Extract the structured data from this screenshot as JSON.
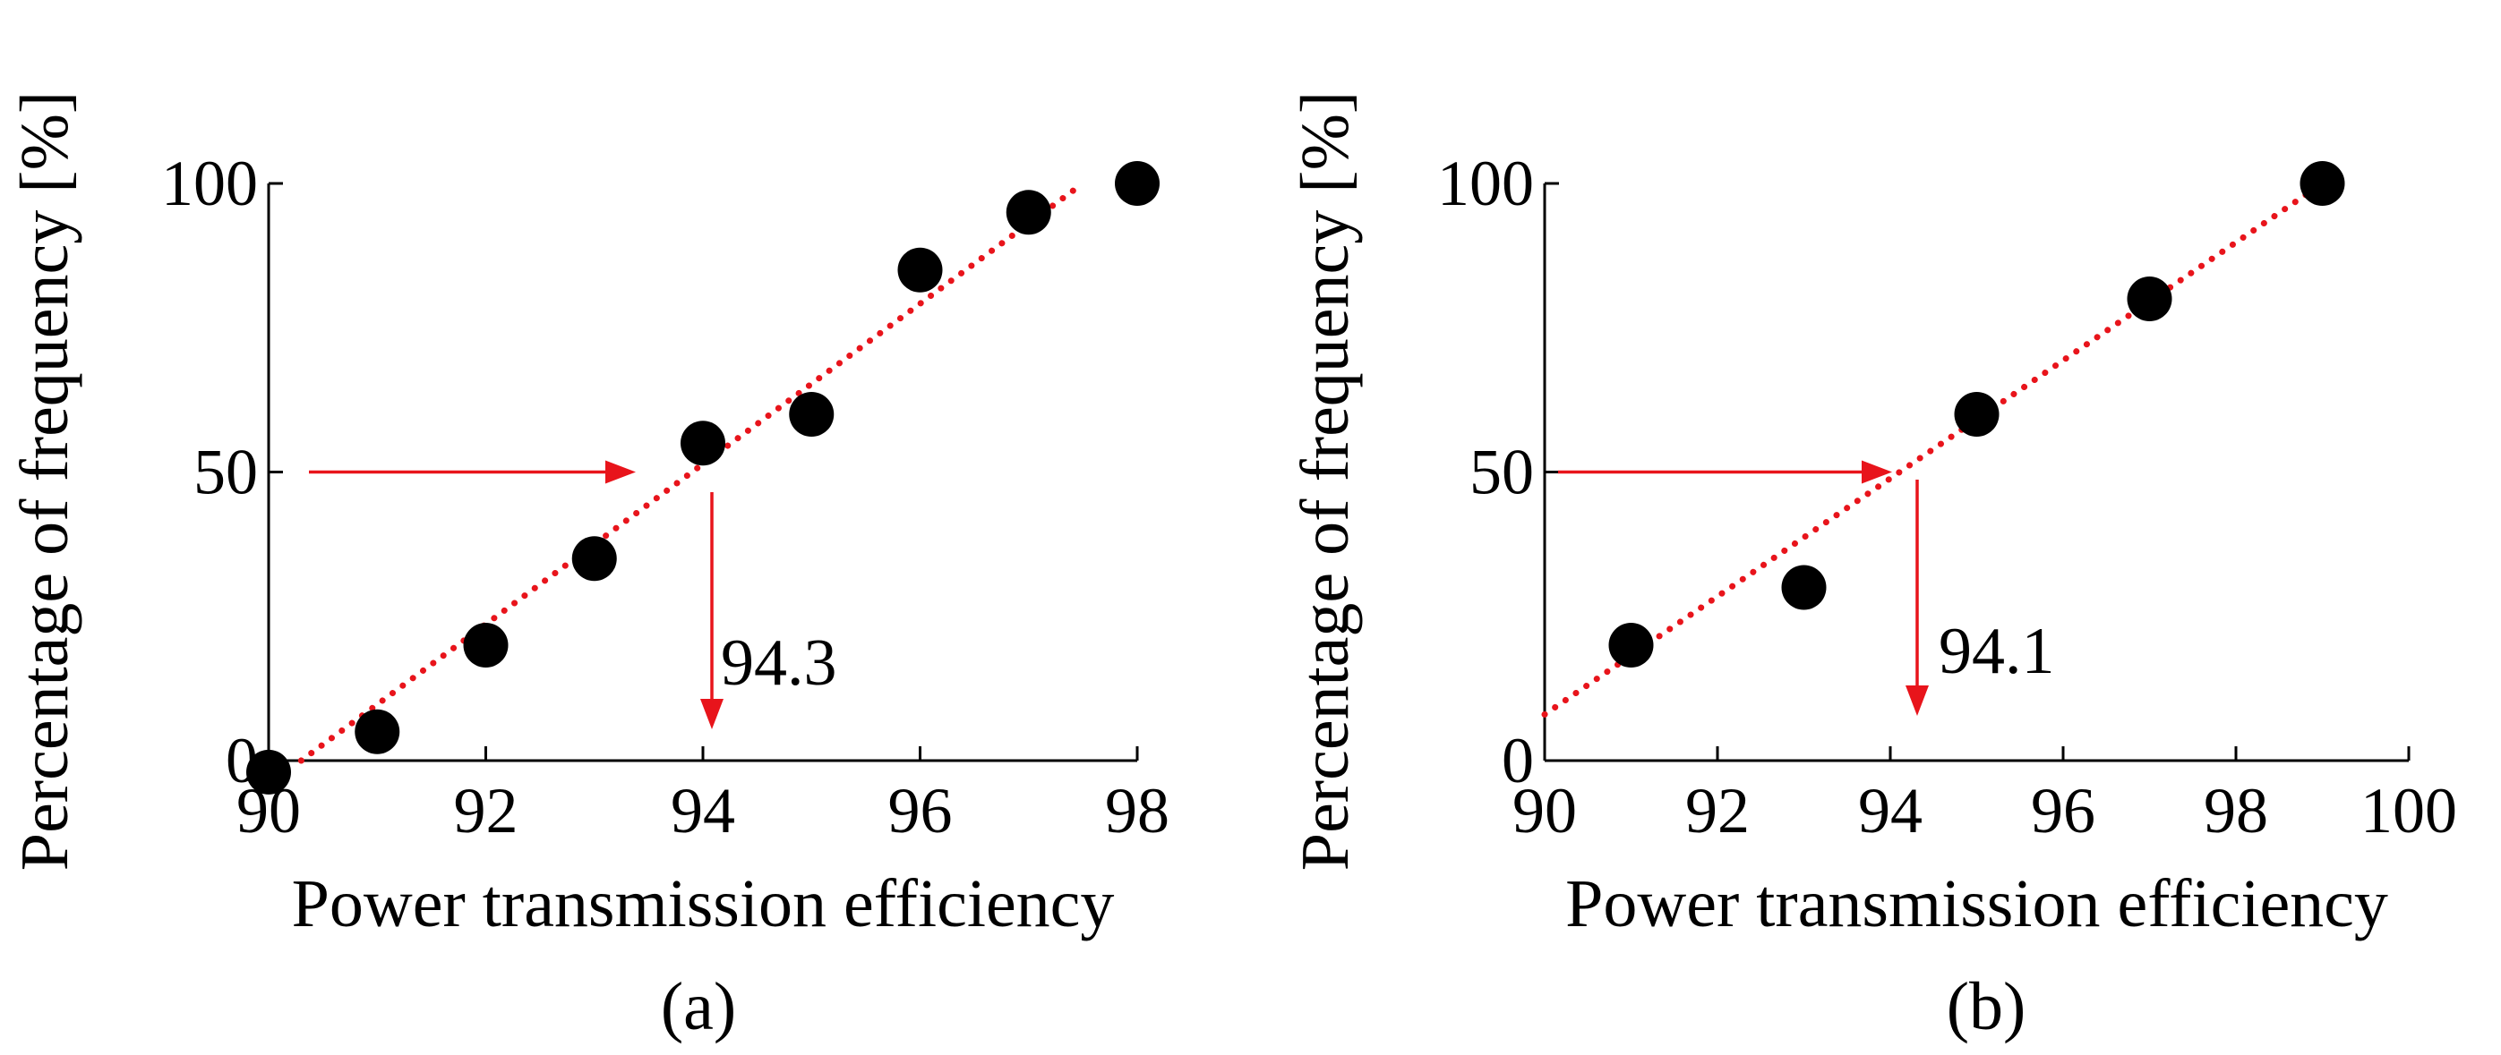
{
  "figure": {
    "colors": {
      "axis": "#000000",
      "marker": "#000000",
      "fit": "#e8141b",
      "arrow": "#e8141b"
    }
  },
  "chart_data": [
    {
      "type": "scatter",
      "panel": "(a)",
      "xlabel": "Power transmission efficiency",
      "ylabel": "Percentage of frequency [%]",
      "xlim": [
        90,
        98
      ],
      "ylim": [
        0,
        100
      ],
      "xticks": [
        90,
        92,
        94,
        96,
        98
      ],
      "yticks": [
        0,
        50,
        100
      ],
      "x": [
        90,
        91,
        92,
        93,
        94,
        95,
        96,
        97,
        98
      ],
      "y": [
        -2,
        5,
        20,
        35,
        55,
        60,
        85,
        95,
        100
      ],
      "fit_line": {
        "style": "dotted",
        "x": [
          90.3,
          97.5
        ],
        "y": [
          0,
          100
        ]
      },
      "median_marker": {
        "y": 50,
        "x": 94.3,
        "label": "94.3"
      }
    },
    {
      "type": "scatter",
      "panel": "(b)",
      "xlabel": "Power transmission efficiency",
      "ylabel": "Percentage of frequency [%]",
      "xlim": [
        90,
        100
      ],
      "ylim": [
        0,
        100
      ],
      "xticks": [
        90,
        92,
        94,
        96,
        98,
        100
      ],
      "yticks": [
        0,
        50,
        100
      ],
      "x": [
        91,
        93,
        95,
        97,
        99
      ],
      "y": [
        20,
        30,
        60,
        80,
        100
      ],
      "fit_line": {
        "style": "dotted",
        "x": [
          90,
          99
        ],
        "y": [
          8,
          100
        ]
      },
      "median_marker": {
        "y": 50,
        "x": 94.1,
        "label": "94.1"
      }
    }
  ]
}
